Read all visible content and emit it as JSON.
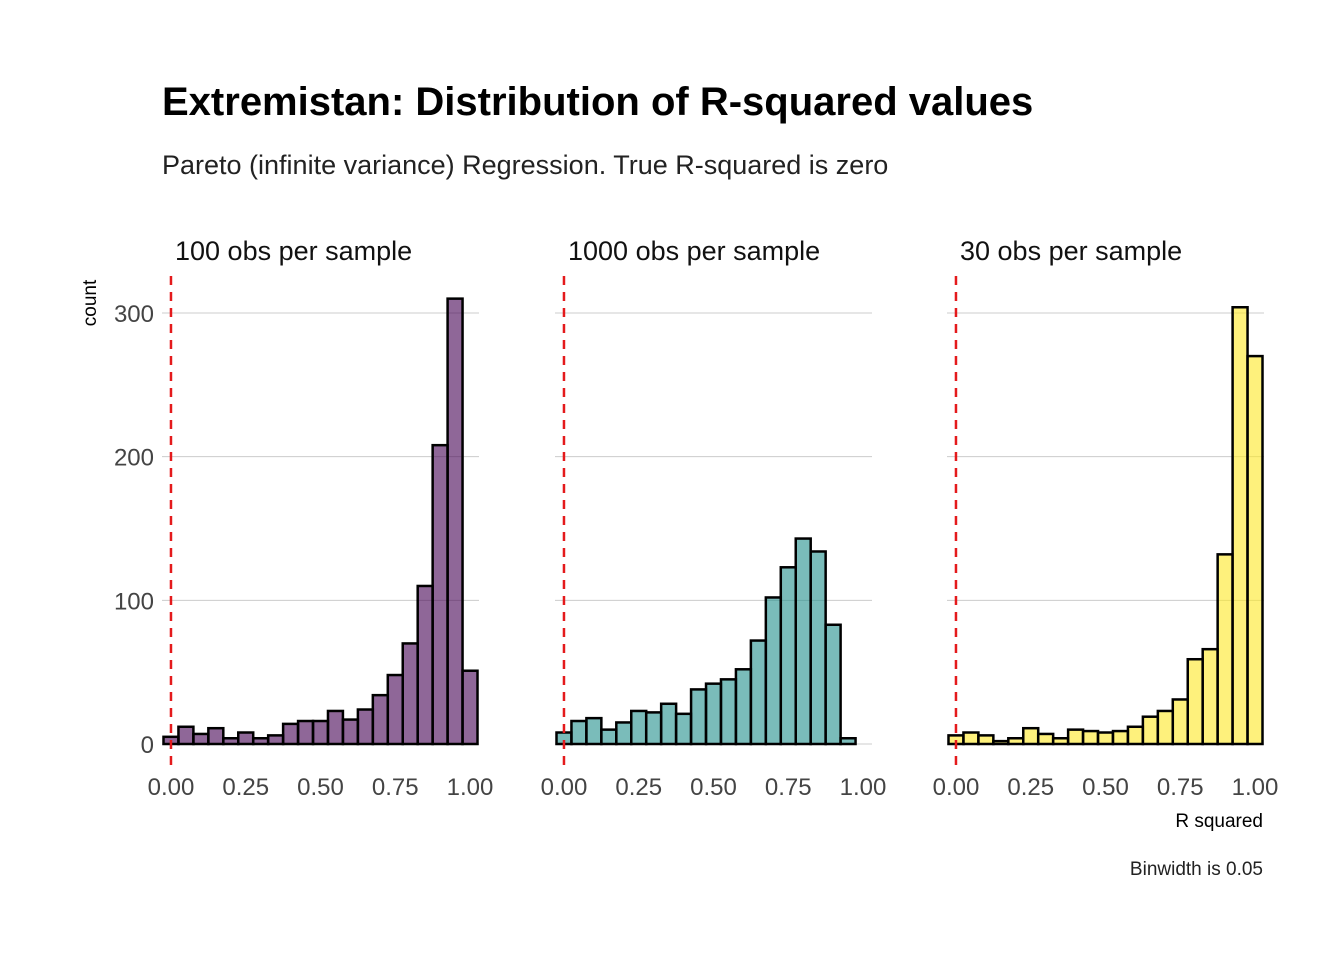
{
  "chart_data": {
    "type": "bar",
    "title": "Extremistan: Distribution of R-squared values",
    "subtitle": "Pareto (infinite variance) Regression. True R-squared is zero",
    "xlabel": "R squared",
    "ylabel": "count",
    "caption": "Binwidth is 0.05",
    "xlim": [
      -0.03,
      1.03
    ],
    "ylim": [
      0,
      320
    ],
    "x_ticks": [
      "0.00",
      "0.25",
      "0.50",
      "0.75",
      "1.00"
    ],
    "y_ticks": [
      "0",
      "100",
      "200",
      "300"
    ],
    "reference_line_x": 0,
    "binwidth": 0.05,
    "bin_centers": [
      0.0,
      0.05,
      0.1,
      0.15,
      0.2,
      0.25,
      0.3,
      0.35,
      0.4,
      0.45,
      0.5,
      0.55,
      0.6,
      0.65,
      0.7,
      0.75,
      0.8,
      0.85,
      0.9,
      0.95,
      1.0
    ],
    "grid": true,
    "legend": "none",
    "panels": [
      {
        "label": "100 obs per sample",
        "color": "#440154",
        "counts": [
          5,
          12,
          7,
          11,
          4,
          8,
          4,
          6,
          14,
          16,
          16,
          23,
          17,
          24,
          34,
          48,
          70,
          110,
          208,
          310,
          51
        ]
      },
      {
        "label": "1000 obs per sample",
        "color": "#21908C",
        "counts": [
          8,
          16,
          18,
          10,
          15,
          23,
          22,
          28,
          21,
          38,
          42,
          45,
          52,
          72,
          102,
          123,
          143,
          134,
          83,
          4,
          0
        ]
      },
      {
        "label": "30 obs per sample",
        "color": "#FDE725",
        "counts": [
          6,
          8,
          6,
          2,
          4,
          11,
          7,
          4,
          10,
          9,
          8,
          9,
          12,
          19,
          23,
          31,
          59,
          66,
          132,
          304,
          270
        ]
      }
    ]
  }
}
